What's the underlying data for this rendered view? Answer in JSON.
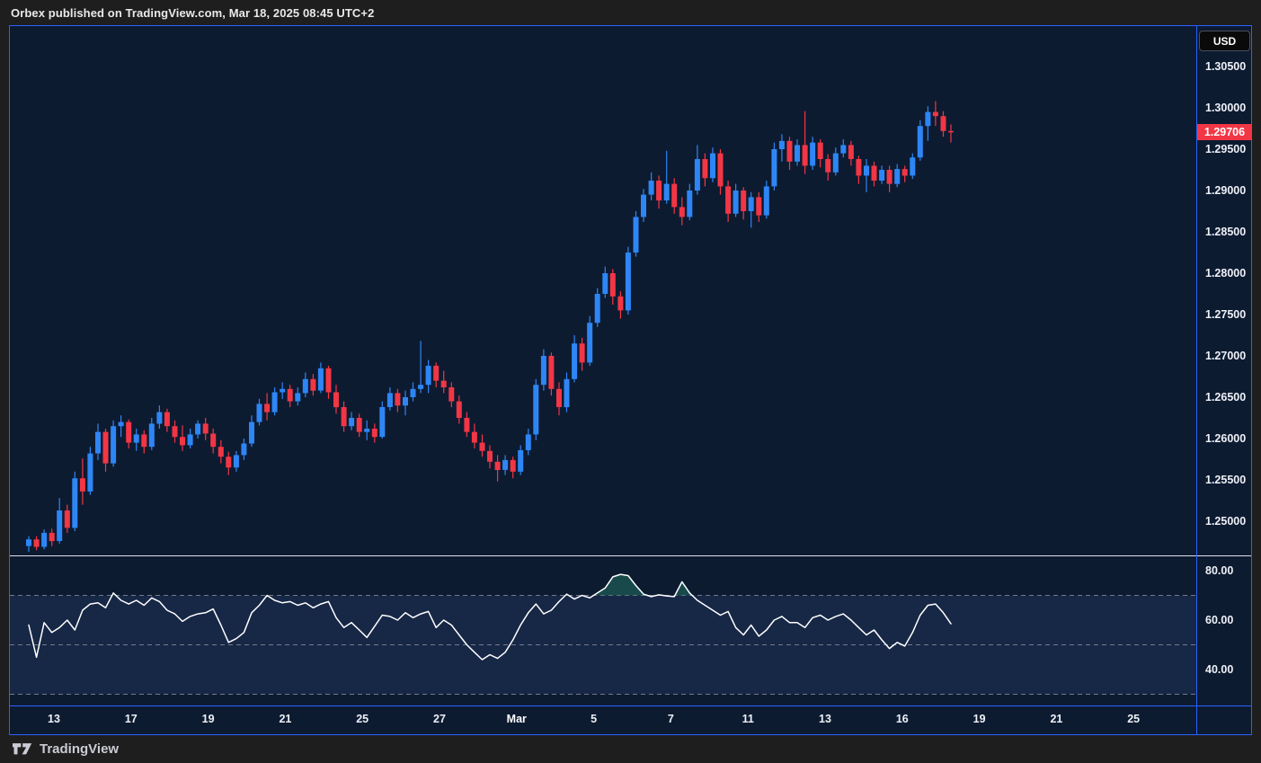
{
  "header": {
    "publish_line": "Orbex published on TradingView.com, Mar 18, 2025 08:45 UTC+2"
  },
  "chart": {
    "currency": "USD",
    "last_price_label": "1.29706"
  },
  "footer": {
    "brand": "TradingView"
  },
  "colors": {
    "background": "#0d1b31",
    "frame_accent": "#2962ff",
    "up_candle": "#2e86f5",
    "down_candle": "#f23645",
    "badge": "#f23645",
    "rsi_line": "#ffffff",
    "rsi_band": "#7a94ff",
    "overbought_fill": "#1f6a5e",
    "guide_dashed": "#9598a1",
    "pane_divider": "#dfe3ea"
  },
  "chart_data": [
    {
      "type": "candlestick",
      "title": "",
      "quote_currency": "USD",
      "last_price": 1.29706,
      "y_axis": {
        "tick_labels": [
          "1.30500",
          "1.30000",
          "1.29500",
          "1.29000",
          "1.28500",
          "1.28000",
          "1.27500",
          "1.27000",
          "1.26500",
          "1.26000",
          "1.25500",
          "1.25000"
        ],
        "range": [
          1.2459,
          1.3099
        ],
        "grid": false
      },
      "x_axis": {
        "tick_labels": [
          "13",
          "17",
          "19",
          "21",
          "25",
          "27",
          "Mar",
          "5",
          "7",
          "11",
          "13",
          "16",
          "19",
          "21",
          "25"
        ]
      },
      "candles_ohlc": [
        [
          1.247,
          1.2482,
          1.2463,
          1.2478
        ],
        [
          1.2478,
          1.2482,
          1.2465,
          1.2469
        ],
        [
          1.2469,
          1.249,
          1.2466,
          1.2486
        ],
        [
          1.2486,
          1.2491,
          1.247,
          1.2476
        ],
        [
          1.2476,
          1.2528,
          1.2473,
          1.2513
        ],
        [
          1.2513,
          1.252,
          1.2486,
          1.2492
        ],
        [
          1.2492,
          1.256,
          1.2488,
          1.2552
        ],
        [
          1.2552,
          1.2576,
          1.252,
          1.2536
        ],
        [
          1.2536,
          1.259,
          1.2532,
          1.2582
        ],
        [
          1.2582,
          1.2618,
          1.2574,
          1.2608
        ],
        [
          1.2608,
          1.2612,
          1.256,
          1.257
        ],
        [
          1.257,
          1.2622,
          1.2566,
          1.2615
        ],
        [
          1.2615,
          1.2628,
          1.2602,
          1.262
        ],
        [
          1.262,
          1.2623,
          1.2588,
          1.2595
        ],
        [
          1.2595,
          1.2612,
          1.2585,
          1.2605
        ],
        [
          1.2605,
          1.261,
          1.2582,
          1.259
        ],
        [
          1.259,
          1.2625,
          1.2586,
          1.2618
        ],
        [
          1.2618,
          1.264,
          1.2612,
          1.2632
        ],
        [
          1.2632,
          1.2636,
          1.2608,
          1.2615
        ],
        [
          1.2615,
          1.2622,
          1.2595,
          1.2602
        ],
        [
          1.2602,
          1.2616,
          1.2585,
          1.2592
        ],
        [
          1.2592,
          1.2612,
          1.2588,
          1.2605
        ],
        [
          1.2605,
          1.2622,
          1.26,
          1.2618
        ],
        [
          1.2618,
          1.2625,
          1.2598,
          1.2606
        ],
        [
          1.2606,
          1.2612,
          1.2582,
          1.259
        ],
        [
          1.259,
          1.2598,
          1.257,
          1.2578
        ],
        [
          1.2578,
          1.2584,
          1.2556,
          1.2565
        ],
        [
          1.2565,
          1.2585,
          1.256,
          1.258
        ],
        [
          1.258,
          1.26,
          1.2574,
          1.2594
        ],
        [
          1.2594,
          1.2628,
          1.259,
          1.262
        ],
        [
          1.262,
          1.2648,
          1.2616,
          1.2642
        ],
        [
          1.2642,
          1.2655,
          1.2622,
          1.2632
        ],
        [
          1.2632,
          1.2662,
          1.2628,
          1.2656
        ],
        [
          1.2656,
          1.2668,
          1.2648,
          1.266
        ],
        [
          1.266,
          1.2665,
          1.2638,
          1.2645
        ],
        [
          1.2645,
          1.2662,
          1.264,
          1.2655
        ],
        [
          1.2655,
          1.268,
          1.265,
          1.2672
        ],
        [
          1.2672,
          1.2678,
          1.2652,
          1.2658
        ],
        [
          1.2658,
          1.2692,
          1.2655,
          1.2685
        ],
        [
          1.2685,
          1.2688,
          1.2648,
          1.2656
        ],
        [
          1.2656,
          1.2665,
          1.263,
          1.2638
        ],
        [
          1.2638,
          1.2645,
          1.2608,
          1.2615
        ],
        [
          1.2615,
          1.2632,
          1.261,
          1.2625
        ],
        [
          1.2625,
          1.263,
          1.2602,
          1.2608
        ],
        [
          1.2608,
          1.2622,
          1.2598,
          1.2612
        ],
        [
          1.2612,
          1.2618,
          1.2595,
          1.2602
        ],
        [
          1.2602,
          1.2645,
          1.26,
          1.2638
        ],
        [
          1.2638,
          1.2662,
          1.2634,
          1.2655
        ],
        [
          1.2655,
          1.266,
          1.2632,
          1.264
        ],
        [
          1.264,
          1.2658,
          1.2628,
          1.265
        ],
        [
          1.265,
          1.2668,
          1.2645,
          1.266
        ],
        [
          1.266,
          1.2718,
          1.2655,
          1.2665
        ],
        [
          1.2665,
          1.2695,
          1.2655,
          1.2688
        ],
        [
          1.2688,
          1.2692,
          1.2662,
          1.267
        ],
        [
          1.267,
          1.2682,
          1.2655,
          1.2662
        ],
        [
          1.2662,
          1.2668,
          1.2638,
          1.2645
        ],
        [
          1.2645,
          1.2652,
          1.2618,
          1.2625
        ],
        [
          1.2625,
          1.2632,
          1.2602,
          1.2608
        ],
        [
          1.2608,
          1.2618,
          1.2588,
          1.2595
        ],
        [
          1.2595,
          1.2605,
          1.2578,
          1.2585
        ],
        [
          1.2585,
          1.2592,
          1.2564,
          1.2572
        ],
        [
          1.2572,
          1.258,
          1.2548,
          1.2562
        ],
        [
          1.2562,
          1.258,
          1.2556,
          1.2574
        ],
        [
          1.2574,
          1.2578,
          1.2552,
          1.256
        ],
        [
          1.256,
          1.2592,
          1.2556,
          1.2586
        ],
        [
          1.2586,
          1.2612,
          1.258,
          1.2605
        ],
        [
          1.2605,
          1.2672,
          1.2598,
          1.2665
        ],
        [
          1.2665,
          1.2708,
          1.2658,
          1.27
        ],
        [
          1.27,
          1.2704,
          1.2652,
          1.266
        ],
        [
          1.266,
          1.2668,
          1.2628,
          1.2638
        ],
        [
          1.2638,
          1.268,
          1.2632,
          1.2672
        ],
        [
          1.2672,
          1.2725,
          1.2668,
          1.2715
        ],
        [
          1.2715,
          1.2722,
          1.2682,
          1.2692
        ],
        [
          1.2692,
          1.2748,
          1.2688,
          1.274
        ],
        [
          1.274,
          1.2782,
          1.2735,
          1.2775
        ],
        [
          1.2775,
          1.2808,
          1.277,
          1.28
        ],
        [
          1.28,
          1.2805,
          1.2762,
          1.2772
        ],
        [
          1.2772,
          1.2778,
          1.2745,
          1.2755
        ],
        [
          1.2755,
          1.2832,
          1.275,
          1.2825
        ],
        [
          1.2825,
          1.2875,
          1.282,
          1.2868
        ],
        [
          1.2868,
          1.2902,
          1.2862,
          1.2895
        ],
        [
          1.2895,
          1.2922,
          1.2888,
          1.2912
        ],
        [
          1.2912,
          1.2918,
          1.2878,
          1.2888
        ],
        [
          1.2888,
          1.2948,
          1.2884,
          1.2908
        ],
        [
          1.2908,
          1.2915,
          1.2872,
          1.288
        ],
        [
          1.288,
          1.2892,
          1.2858,
          1.2868
        ],
        [
          1.2868,
          1.2908,
          1.2864,
          1.29
        ],
        [
          1.29,
          1.2955,
          1.2895,
          1.2938
        ],
        [
          1.2938,
          1.2945,
          1.2905,
          1.2915
        ],
        [
          1.2915,
          1.2952,
          1.291,
          1.2945
        ],
        [
          1.2945,
          1.295,
          1.2895,
          1.2905
        ],
        [
          1.2905,
          1.2912,
          1.2862,
          1.2872
        ],
        [
          1.2872,
          1.2908,
          1.2868,
          1.29
        ],
        [
          1.29,
          1.2904,
          1.2865,
          1.2875
        ],
        [
          1.2875,
          1.2898,
          1.2855,
          1.2892
        ],
        [
          1.2892,
          1.2898,
          1.2862,
          1.287
        ],
        [
          1.287,
          1.2912,
          1.2866,
          1.2905
        ],
        [
          1.2905,
          1.2958,
          1.29,
          1.295
        ],
        [
          1.295,
          1.2968,
          1.2935,
          1.296
        ],
        [
          1.296,
          1.2965,
          1.2925,
          1.2935
        ],
        [
          1.2935,
          1.2962,
          1.293,
          1.2955
        ],
        [
          1.2955,
          1.2996,
          1.292,
          1.293
        ],
        [
          1.293,
          1.2965,
          1.2925,
          1.2958
        ],
        [
          1.2958,
          1.2962,
          1.2928,
          1.2938
        ],
        [
          1.2938,
          1.2944,
          1.2912,
          1.2922
        ],
        [
          1.2922,
          1.2952,
          1.2918,
          1.2945
        ],
        [
          1.2945,
          1.2962,
          1.294,
          1.2955
        ],
        [
          1.2955,
          1.296,
          1.293,
          1.2938
        ],
        [
          1.2938,
          1.2942,
          1.2908,
          1.2918
        ],
        [
          1.2918,
          1.2938,
          1.2898,
          1.293
        ],
        [
          1.293,
          1.2935,
          1.2905,
          1.2912
        ],
        [
          1.2912,
          1.293,
          1.2908,
          1.2925
        ],
        [
          1.2925,
          1.293,
          1.2898,
          1.2908
        ],
        [
          1.2908,
          1.2932,
          1.2904,
          1.2926
        ],
        [
          1.2926,
          1.293,
          1.291,
          1.2918
        ],
        [
          1.2918,
          1.2945,
          1.2914,
          1.294
        ],
        [
          1.294,
          1.2985,
          1.2936,
          1.2978
        ],
        [
          1.2978,
          1.3002,
          1.296,
          1.2995
        ],
        [
          1.2995,
          1.3008,
          1.2978,
          1.299
        ],
        [
          1.299,
          1.2996,
          1.2965,
          1.2972
        ],
        [
          1.2972,
          1.298,
          1.2958,
          1.29706
        ]
      ]
    },
    {
      "type": "line",
      "name": "RSI",
      "y_axis": {
        "tick_labels": [
          "80.00",
          "60.00",
          "40.00"
        ],
        "guide_levels": [
          70,
          50,
          30
        ],
        "range": [
          25,
          86
        ]
      },
      "values": [
        58,
        45,
        59,
        55,
        57,
        60,
        56,
        64,
        66.5,
        67,
        65,
        71,
        68,
        66.5,
        68,
        66,
        69,
        67.5,
        64,
        62.5,
        59.5,
        61.5,
        62.5,
        63,
        64.5,
        58,
        51,
        52.5,
        55,
        63,
        66,
        70,
        68,
        67,
        67.5,
        66,
        67,
        65,
        66.5,
        67.5,
        61,
        57,
        59,
        56,
        53,
        57.5,
        62,
        61.5,
        60,
        63,
        61,
        62.5,
        63.5,
        57,
        60,
        58,
        54,
        50,
        47,
        44,
        46,
        44.5,
        47,
        52,
        58,
        63,
        66.5,
        62.5,
        64,
        67.5,
        70.5,
        68.5,
        70,
        69,
        71,
        73,
        77.5,
        78.5,
        78,
        74,
        70.5,
        69.5,
        70.2,
        69.8,
        69.5,
        75.5,
        71,
        68,
        66,
        64,
        62,
        63.5,
        57,
        54,
        58,
        53.5,
        56,
        60,
        61.5,
        59,
        59,
        57,
        61,
        62,
        60,
        61.5,
        62.5,
        60,
        57,
        54,
        56,
        52,
        48.5,
        51,
        49.5,
        55,
        62,
        66,
        66.5,
        63,
        58.5
      ]
    }
  ]
}
